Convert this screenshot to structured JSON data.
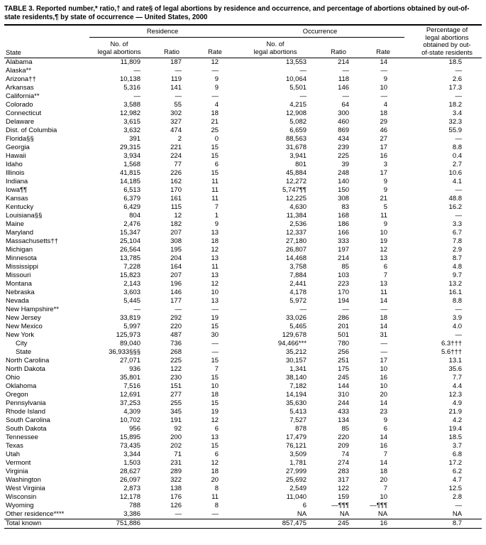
{
  "title": "TABLE 3. Reported number,* ratio,† and rate§ of legal abortions by residence and occurrence, and percentage of abortions obtained by out-of-state residents,¶ by state of occurrence — United States, 2000",
  "table": {
    "group_headers": {
      "residence": "Residence",
      "occurrence": "Occurrence",
      "percentage": "Percentage of legal abortions obtained by out-of-state residents"
    },
    "col_headers": {
      "state": "State",
      "no": "No. of\nlegal abortions",
      "ratio": "Ratio",
      "rate": "Rate"
    },
    "rows": [
      {
        "state": "Alabama",
        "cells": [
          "11,809",
          "187",
          "12",
          "13,553",
          "214",
          "14",
          "18.5"
        ]
      },
      {
        "state": "Alaska**",
        "cells": [
          "—",
          "—",
          "—",
          "—",
          "—",
          "—",
          "—"
        ]
      },
      {
        "state": "Arizona††",
        "cells": [
          "10,138",
          "119",
          "9",
          "10,064",
          "118",
          "9",
          "2.6"
        ]
      },
      {
        "state": "Arkansas",
        "cells": [
          "5,316",
          "141",
          "9",
          "5,501",
          "146",
          "10",
          "17.3"
        ]
      },
      {
        "state": "California**",
        "cells": [
          "—",
          "—",
          "—",
          "—",
          "—",
          "—",
          "—"
        ]
      },
      {
        "state": "Colorado",
        "cells": [
          "3,588",
          "55",
          "4",
          "4,215",
          "64",
          "4",
          "18.2"
        ]
      },
      {
        "state": "Connecticut",
        "cells": [
          "12,982",
          "302",
          "18",
          "12,908",
          "300",
          "18",
          "3.4"
        ]
      },
      {
        "state": "Delaware",
        "cells": [
          "3,615",
          "327",
          "21",
          "5,082",
          "460",
          "29",
          "32.3"
        ]
      },
      {
        "state": "Dist. of Columbia",
        "cells": [
          "3,632",
          "474",
          "25",
          "6,659",
          "869",
          "46",
          "55.9"
        ]
      },
      {
        "state": "Florida§§",
        "cells": [
          "391",
          "2",
          "0",
          "88,563",
          "434",
          "27",
          "—"
        ]
      },
      {
        "state": "Georgia",
        "cells": [
          "29,315",
          "221",
          "15",
          "31,678",
          "239",
          "17",
          "8.8"
        ]
      },
      {
        "state": "Hawaii",
        "cells": [
          "3,934",
          "224",
          "15",
          "3,941",
          "225",
          "16",
          "0.4"
        ]
      },
      {
        "state": "Idaho",
        "cells": [
          "1,568",
          "77",
          "6",
          "801",
          "39",
          "3",
          "2.7"
        ]
      },
      {
        "state": "Illinois",
        "cells": [
          "41,815",
          "226",
          "15",
          "45,884",
          "248",
          "17",
          "10.6"
        ]
      },
      {
        "state": "Indiana",
        "cells": [
          "14,185",
          "162",
          "11",
          "12,272",
          "140",
          "9",
          "4.1"
        ]
      },
      {
        "state": "Iowa¶¶",
        "cells": [
          "6,513",
          "170",
          "11",
          "5,747¶¶",
          "150",
          "9",
          "—"
        ]
      },
      {
        "state": "Kansas",
        "cells": [
          "6,379",
          "161",
          "11",
          "12,225",
          "308",
          "21",
          "48.8"
        ]
      },
      {
        "state": "Kentucky",
        "cells": [
          "6,429",
          "115",
          "7",
          "4,630",
          "83",
          "5",
          "16.2"
        ]
      },
      {
        "state": "Louisiana§§",
        "cells": [
          "804",
          "12",
          "1",
          "11,384",
          "168",
          "11",
          "—"
        ]
      },
      {
        "state": "Maine",
        "cells": [
          "2,476",
          "182",
          "9",
          "2,536",
          "186",
          "9",
          "3.3"
        ]
      },
      {
        "state": "Maryland",
        "cells": [
          "15,347",
          "207",
          "13",
          "12,337",
          "166",
          "10",
          "6.7"
        ]
      },
      {
        "state": "Massachusetts††",
        "cells": [
          "25,104",
          "308",
          "18",
          "27,180",
          "333",
          "19",
          "7.8"
        ]
      },
      {
        "state": "Michigan",
        "cells": [
          "26,564",
          "195",
          "12",
          "26,807",
          "197",
          "12",
          "2.9"
        ]
      },
      {
        "state": "Minnesota",
        "cells": [
          "13,785",
          "204",
          "13",
          "14,468",
          "214",
          "13",
          "8.7"
        ]
      },
      {
        "state": "Mississippi",
        "cells": [
          "7,228",
          "164",
          "11",
          "3,758",
          "85",
          "6",
          "4.8"
        ]
      },
      {
        "state": "Missouri",
        "cells": [
          "15,823",
          "207",
          "13",
          "7,884",
          "103",
          "7",
          "9.7"
        ]
      },
      {
        "state": "Montana",
        "cells": [
          "2,143",
          "196",
          "12",
          "2,441",
          "223",
          "13",
          "13.2"
        ]
      },
      {
        "state": "Nebraska",
        "cells": [
          "3,603",
          "146",
          "10",
          "4,178",
          "170",
          "11",
          "16.1"
        ]
      },
      {
        "state": "Nevada",
        "cells": [
          "5,445",
          "177",
          "13",
          "5,972",
          "194",
          "14",
          "8.8"
        ]
      },
      {
        "state": "New Hampshire**",
        "cells": [
          "—",
          "—",
          "—",
          "—",
          "—",
          "—",
          "—"
        ]
      },
      {
        "state": "New Jersey",
        "cells": [
          "33,819",
          "292",
          "19",
          "33,026",
          "286",
          "18",
          "3.9"
        ]
      },
      {
        "state": "New Mexico",
        "cells": [
          "5,997",
          "220",
          "15",
          "5,465",
          "201",
          "14",
          "4.0"
        ]
      },
      {
        "state": "New York",
        "cells": [
          "125,973",
          "487",
          "30",
          "129,678",
          "501",
          "31",
          "—"
        ]
      },
      {
        "state": "City",
        "indent": true,
        "cells": [
          "89,040",
          "736",
          "—",
          "94,466***",
          "780",
          "—",
          "6.3†††"
        ]
      },
      {
        "state": "State",
        "indent": true,
        "cells": [
          "36,933§§§",
          "268",
          "—",
          "35,212",
          "256",
          "—",
          "5.6†††"
        ]
      },
      {
        "state": "North Carolina",
        "cells": [
          "27,071",
          "225",
          "15",
          "30,157",
          "251",
          "17",
          "13.1"
        ]
      },
      {
        "state": "North Dakota",
        "cells": [
          "936",
          "122",
          "7",
          "1,341",
          "175",
          "10",
          "35.6"
        ]
      },
      {
        "state": "Ohio",
        "cells": [
          "35,801",
          "230",
          "15",
          "38,140",
          "245",
          "16",
          "7.7"
        ]
      },
      {
        "state": "Oklahoma",
        "cells": [
          "7,516",
          "151",
          "10",
          "7,182",
          "144",
          "10",
          "4.4"
        ]
      },
      {
        "state": "Oregon",
        "cells": [
          "12,691",
          "277",
          "18",
          "14,194",
          "310",
          "20",
          "12.3"
        ]
      },
      {
        "state": "Pennsylvania",
        "cells": [
          "37,253",
          "255",
          "15",
          "35,630",
          "244",
          "14",
          "4.9"
        ]
      },
      {
        "state": "Rhode Island",
        "cells": [
          "4,309",
          "345",
          "19",
          "5,413",
          "433",
          "23",
          "21.9"
        ]
      },
      {
        "state": "South Carolina",
        "cells": [
          "10,702",
          "191",
          "12",
          "7,527",
          "134",
          "9",
          "4.2"
        ]
      },
      {
        "state": "South Dakota",
        "cells": [
          "956",
          "92",
          "6",
          "878",
          "85",
          "6",
          "19.4"
        ]
      },
      {
        "state": "Tennessee",
        "cells": [
          "15,895",
          "200",
          "13",
          "17,479",
          "220",
          "14",
          "18.5"
        ]
      },
      {
        "state": "Texas",
        "cells": [
          "73,435",
          "202",
          "15",
          "76,121",
          "209",
          "16",
          "3.7"
        ]
      },
      {
        "state": "Utah",
        "cells": [
          "3,344",
          "71",
          "6",
          "3,509",
          "74",
          "7",
          "6.8"
        ]
      },
      {
        "state": "Vermont",
        "cells": [
          "1,503",
          "231",
          "12",
          "1,781",
          "274",
          "14",
          "17.2"
        ]
      },
      {
        "state": "Virginia",
        "cells": [
          "28,627",
          "289",
          "18",
          "27,999",
          "283",
          "18",
          "6.2"
        ]
      },
      {
        "state": "Washington",
        "cells": [
          "26,097",
          "322",
          "20",
          "25,692",
          "317",
          "20",
          "4.7"
        ]
      },
      {
        "state": "West Virginia",
        "cells": [
          "2,873",
          "138",
          "8",
          "2,549",
          "122",
          "7",
          "12.5"
        ]
      },
      {
        "state": "Wisconsin",
        "cells": [
          "12,178",
          "176",
          "11",
          "11,040",
          "159",
          "10",
          "2.8"
        ]
      },
      {
        "state": "Wyoming",
        "cells": [
          "788",
          "126",
          "8",
          "6",
          "—¶¶¶",
          "—¶¶¶",
          "—"
        ]
      },
      {
        "state": "Other residence****",
        "cells": [
          "3,386",
          "—",
          "—",
          "NA",
          "NA",
          "NA",
          "NA"
        ]
      },
      {
        "state": "Total known",
        "total": true,
        "cells": [
          "751,886",
          "",
          "",
          "857,475",
          "245",
          "16",
          "8.7"
        ]
      }
    ]
  }
}
